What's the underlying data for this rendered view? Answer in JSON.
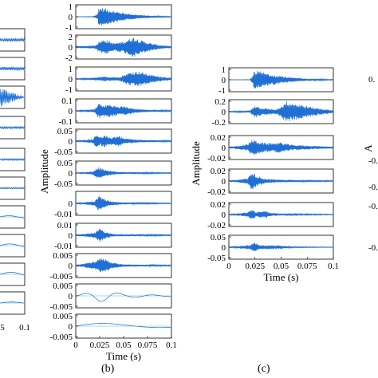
{
  "figure": {
    "panel_b_label": "(b)",
    "panel_c_label": "(c)",
    "panel_a_time_ticks": [
      "5",
      "0.1"
    ],
    "panel_d_partial_ticks": [
      "0.",
      "-0.",
      "-0.",
      "-0.",
      "-0."
    ]
  },
  "chart_data": [
    {
      "type": "line",
      "panel": "a",
      "note": "Left edge of panel (a) partially cropped; 10 decomposed signal strips visible.",
      "n_strips": 10,
      "x_ticks": [
        "5",
        "0.1"
      ],
      "line_color": "#1f6fd6"
    },
    {
      "type": "line",
      "panel": "b",
      "ylabel": "Amplitude",
      "xlabel": "Time (s)",
      "xlim": [
        0,
        0.1
      ],
      "x_ticks": [
        "0",
        "0.025",
        "0.05",
        "0.075",
        "0.1"
      ],
      "line_color": "#1f6fd6",
      "series": [
        {
          "ticks": [
            "1",
            "0",
            "-1"
          ],
          "ylim": [
            -1,
            1
          ],
          "envelope": [
            [
              0,
              0.01
            ],
            [
              0.018,
              0.02
            ],
            [
              0.023,
              0.25
            ],
            [
              0.024,
              0.85
            ],
            [
              0.03,
              0.75
            ],
            [
              0.04,
              0.5
            ],
            [
              0.05,
              0.35
            ],
            [
              0.06,
              0.22
            ],
            [
              0.07,
              0.14
            ],
            [
              0.08,
              0.08
            ],
            [
              0.09,
              0.05
            ],
            [
              0.1,
              0.03
            ]
          ],
          "freq": 900
        },
        {
          "ticks": [
            "2",
            "0",
            "-2"
          ],
          "ylim": [
            -2,
            2
          ],
          "envelope": [
            [
              0,
              0.05
            ],
            [
              0.02,
              0.15
            ],
            [
              0.025,
              0.5
            ],
            [
              0.03,
              0.7
            ],
            [
              0.04,
              0.35
            ],
            [
              0.05,
              0.5
            ],
            [
              0.06,
              0.9
            ],
            [
              0.07,
              0.55
            ],
            [
              0.08,
              0.3
            ],
            [
              0.09,
              0.15
            ],
            [
              0.1,
              0.08
            ]
          ],
          "freq": 800
        },
        {
          "ticks": [
            "1",
            "0",
            "-1"
          ],
          "ylim": [
            -1,
            1
          ],
          "envelope": [
            [
              0,
              0.02
            ],
            [
              0.02,
              0.12
            ],
            [
              0.03,
              0.2
            ],
            [
              0.045,
              0.15
            ],
            [
              0.055,
              0.55
            ],
            [
              0.065,
              0.7
            ],
            [
              0.075,
              0.45
            ],
            [
              0.085,
              0.25
            ],
            [
              0.1,
              0.1
            ]
          ],
          "freq": 700
        },
        {
          "ticks": [
            "0.1",
            "0",
            "-0.1"
          ],
          "ylim": [
            -0.1,
            0.1
          ],
          "envelope": [
            [
              0,
              0.02
            ],
            [
              0.02,
              0.15
            ],
            [
              0.024,
              0.75
            ],
            [
              0.028,
              0.45
            ],
            [
              0.035,
              0.6
            ],
            [
              0.045,
              0.35
            ],
            [
              0.05,
              0.45
            ],
            [
              0.06,
              0.2
            ],
            [
              0.075,
              0.1
            ],
            [
              0.1,
              0.05
            ]
          ],
          "freq": 500
        },
        {
          "ticks": [
            "0.05",
            "0",
            "-0.05"
          ],
          "ylim": [
            -0.05,
            0.05
          ],
          "envelope": [
            [
              0,
              0.02
            ],
            [
              0.018,
              0.2
            ],
            [
              0.022,
              0.7
            ],
            [
              0.026,
              0.35
            ],
            [
              0.03,
              0.55
            ],
            [
              0.035,
              0.3
            ],
            [
              0.045,
              0.5
            ],
            [
              0.05,
              0.25
            ],
            [
              0.065,
              0.12
            ],
            [
              0.1,
              0.05
            ]
          ],
          "freq": 350
        },
        {
          "ticks": [
            "0.05",
            "0",
            "-0.05"
          ],
          "ylim": [
            -0.05,
            0.05
          ],
          "envelope": [
            [
              0,
              0.01
            ],
            [
              0.018,
              0.15
            ],
            [
              0.023,
              0.55
            ],
            [
              0.028,
              0.35
            ],
            [
              0.035,
              0.2
            ],
            [
              0.045,
              0.1
            ],
            [
              0.1,
              0.03
            ]
          ],
          "freq": 250
        },
        {
          "ticks": [
            "0",
            "-0.01"
          ],
          "ylim": [
            -0.01,
            0.01
          ],
          "envelope": [
            [
              0,
              0.02
            ],
            [
              0.02,
              0.2
            ],
            [
              0.024,
              0.75
            ],
            [
              0.028,
              0.5
            ],
            [
              0.035,
              0.2
            ],
            [
              0.05,
              0.08
            ],
            [
              0.1,
              0.03
            ]
          ],
          "freq": 160
        },
        {
          "ticks": [
            "0.01",
            "0",
            "-0.01"
          ],
          "ylim": [
            -0.01,
            0.01
          ],
          "envelope": [
            [
              0,
              0.02
            ],
            [
              0.02,
              0.25
            ],
            [
              0.025,
              0.6
            ],
            [
              0.032,
              0.25
            ],
            [
              0.04,
              0.1
            ],
            [
              0.1,
              0.04
            ]
          ],
          "freq": 90
        },
        {
          "ticks": [
            "0.005",
            "0",
            "-0.005"
          ],
          "ylim": [
            -0.005,
            0.005
          ],
          "envelope": [
            [
              0,
              0.02
            ],
            [
              0.02,
              0.35
            ],
            [
              0.028,
              0.75
            ],
            [
              0.036,
              0.3
            ],
            [
              0.05,
              0.1
            ],
            [
              0.1,
              0.04
            ]
          ],
          "freq": 55
        },
        {
          "ticks": [
            "0.005",
            "0",
            "-0.005"
          ],
          "ylim": [
            -0.005,
            0.005
          ],
          "envelope": [
            [
              0,
              0.03
            ],
            [
              0.025,
              0.5
            ],
            [
              0.035,
              0.4
            ],
            [
              0.05,
              0.15
            ],
            [
              0.1,
              0.05
            ]
          ],
          "freq": 28
        },
        {
          "ticks": [
            "0.005",
            "0",
            "-0.005"
          ],
          "ylim": [
            -0.005,
            0.005
          ],
          "envelope": [
            [
              0,
              0.3
            ],
            [
              0.05,
              0.2
            ],
            [
              0.1,
              0.1
            ]
          ],
          "freq": 8
        }
      ]
    },
    {
      "type": "line",
      "panel": "c",
      "ylabel": "Amplitude",
      "xlabel": "Time (s)",
      "xlim": [
        0,
        0.1
      ],
      "x_ticks": [
        "0",
        "0.025",
        "0.05",
        "0.075",
        "0.1"
      ],
      "line_color": "#1f6fd6",
      "series": [
        {
          "ticks": [
            "1",
            "0",
            "-1"
          ],
          "ylim": [
            -1,
            1
          ],
          "envelope": [
            [
              0,
              0.01
            ],
            [
              0.02,
              0.02
            ],
            [
              0.023,
              0.35
            ],
            [
              0.024,
              0.85
            ],
            [
              0.03,
              0.75
            ],
            [
              0.04,
              0.5
            ],
            [
              0.05,
              0.35
            ],
            [
              0.06,
              0.2
            ],
            [
              0.075,
              0.1
            ],
            [
              0.1,
              0.03
            ]
          ],
          "freq": 900
        },
        {
          "ticks": [
            "0.2",
            "0",
            "-0.2"
          ],
          "ylim": [
            -0.2,
            0.2
          ],
          "envelope": [
            [
              0,
              0.03
            ],
            [
              0.02,
              0.1
            ],
            [
              0.025,
              0.55
            ],
            [
              0.03,
              0.35
            ],
            [
              0.045,
              0.2
            ],
            [
              0.05,
              0.5
            ],
            [
              0.055,
              0.95
            ],
            [
              0.065,
              0.7
            ],
            [
              0.08,
              0.4
            ],
            [
              0.09,
              0.25
            ],
            [
              0.1,
              0.12
            ]
          ],
          "freq": 800
        },
        {
          "ticks": [
            "0.02",
            "0",
            "-0.02"
          ],
          "ylim": [
            -0.02,
            0.02
          ],
          "envelope": [
            [
              0,
              0.03
            ],
            [
              0.018,
              0.3
            ],
            [
              0.022,
              0.75
            ],
            [
              0.028,
              0.55
            ],
            [
              0.035,
              0.4
            ],
            [
              0.05,
              0.45
            ],
            [
              0.06,
              0.25
            ],
            [
              0.08,
              0.15
            ],
            [
              0.1,
              0.08
            ]
          ],
          "freq": 500
        },
        {
          "ticks": [
            "0.02",
            "0",
            "-0.02"
          ],
          "ylim": [
            -0.02,
            0.02
          ],
          "envelope": [
            [
              0,
              0.02
            ],
            [
              0.018,
              0.25
            ],
            [
              0.022,
              0.85
            ],
            [
              0.027,
              0.45
            ],
            [
              0.035,
              0.2
            ],
            [
              0.05,
              0.12
            ],
            [
              0.1,
              0.04
            ]
          ],
          "freq": 350
        },
        {
          "ticks": [
            "0.02",
            "0",
            "-0.02"
          ],
          "ylim": [
            -0.02,
            0.02
          ],
          "envelope": [
            [
              0,
              0.02
            ],
            [
              0.018,
              0.2
            ],
            [
              0.022,
              0.5
            ],
            [
              0.026,
              0.2
            ],
            [
              0.035,
              0.35
            ],
            [
              0.04,
              0.15
            ],
            [
              0.05,
              0.08
            ],
            [
              0.1,
              0.03
            ]
          ],
          "freq": 260
        },
        {
          "ticks": [
            "0.05",
            "0",
            "-0.05"
          ],
          "ylim": [
            -0.05,
            0.05
          ],
          "envelope": [
            [
              0,
              0.02
            ],
            [
              0.02,
              0.2
            ],
            [
              0.024,
              0.45
            ],
            [
              0.03,
              0.2
            ],
            [
              0.05,
              0.15
            ],
            [
              0.06,
              0.05
            ],
            [
              0.1,
              0.02
            ]
          ],
          "freq": 200
        }
      ]
    }
  ]
}
